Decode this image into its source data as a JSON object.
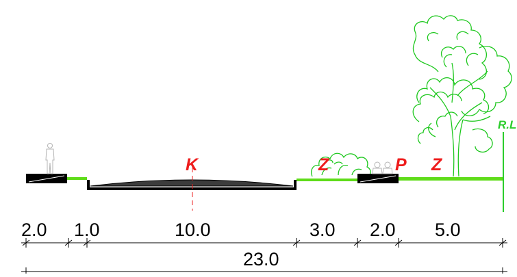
{
  "section_labels": {
    "carriageway": "K",
    "greenery_1": "Z",
    "greenery_2": "Z",
    "sidewalk": "P",
    "regulation_line": "R.L"
  },
  "segment_widths": [
    "2.0",
    "1.0",
    "10.0",
    "3.0",
    "2.0",
    "5.0"
  ],
  "total_width": "23.0",
  "colors": {
    "label_red": "#ee1c1c",
    "green": "#5fdc19",
    "tree_green": "#1ec81e",
    "regulation_line": "#2ccd2c",
    "line_black": "#000000",
    "person_gray": "#b4b4b4"
  }
}
